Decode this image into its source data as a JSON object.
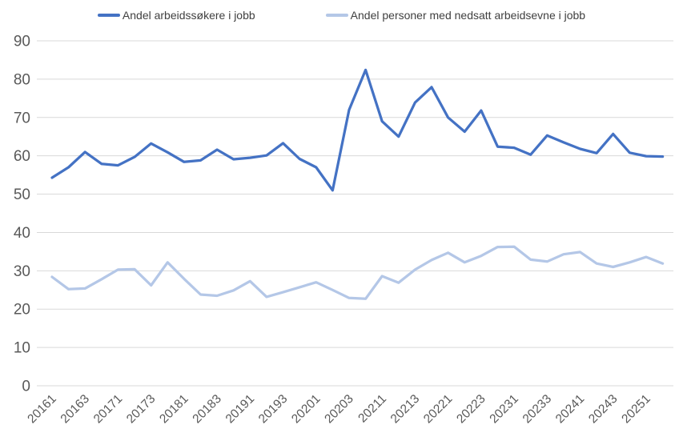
{
  "chart": {
    "background": "#ffffff",
    "grid_color": "#d9d9d9",
    "tick_label_color": "#595959",
    "legend_text_color": "#404040"
  },
  "legend": {
    "items": [
      {
        "label": "Andel arbeidssøkere i jobb",
        "color": "#4472C4"
      },
      {
        "label": "Andel personer med nedsatt arbeidsevne i jobb",
        "color": "#B4C7E7"
      }
    ]
  },
  "chart_data": {
    "type": "line",
    "title": "",
    "xlabel": "",
    "ylabel": "",
    "categories": [
      "20161",
      "20162",
      "20163",
      "20164",
      "20171",
      "20172",
      "20173",
      "20174",
      "20181",
      "20182",
      "20183",
      "20184",
      "20191",
      "20192",
      "20193",
      "20194",
      "20201",
      "20202",
      "20203",
      "20204",
      "20211",
      "20212",
      "20213",
      "20214",
      "20221",
      "20222",
      "20223",
      "20224",
      "20231",
      "20232",
      "20233",
      "20234",
      "20241",
      "20242",
      "20243",
      "20244",
      "20251",
      "20252"
    ],
    "x_tick_labels_shown": [
      "20161",
      "20163",
      "20171",
      "20173",
      "20181",
      "20183",
      "20191",
      "20193",
      "20201",
      "20203",
      "20211",
      "20213",
      "20221",
      "20223",
      "20231",
      "20233",
      "20241",
      "20243",
      "20251"
    ],
    "x_tick_every": 2,
    "series": [
      {
        "name": "Andel arbeidssøkere i jobb",
        "color": "#4472C4",
        "values": [
          54.3,
          57.0,
          61.0,
          57.9,
          57.5,
          59.7,
          63.2,
          60.9,
          58.4,
          58.8,
          61.6,
          59.1,
          59.5,
          60.1,
          63.3,
          59.2,
          57.0,
          51.0,
          72.0,
          82.4,
          69.0,
          65.0,
          73.9,
          77.9,
          70.0,
          66.3,
          71.8,
          62.4,
          62.1,
          60.3,
          65.3,
          63.5,
          61.8,
          60.7,
          65.7,
          60.8,
          59.9,
          59.8
        ]
      },
      {
        "name": "Andel personer med nedsatt arbeidsevne i jobb",
        "color": "#B4C7E7",
        "values": [
          28.4,
          25.2,
          25.4,
          27.8,
          30.3,
          30.4,
          26.2,
          32.2,
          27.9,
          23.8,
          23.5,
          24.9,
          27.3,
          23.2,
          24.4,
          25.7,
          27.0,
          25.0,
          22.9,
          22.7,
          28.6,
          26.9,
          30.3,
          32.8,
          34.7,
          32.2,
          33.9,
          36.2,
          36.3,
          32.9,
          32.4,
          34.3,
          34.9,
          31.9,
          31.0,
          32.2,
          33.6,
          31.9
        ]
      }
    ],
    "ylim": [
      0,
      90
    ],
    "yticks": [
      0,
      10,
      20,
      30,
      40,
      50,
      60,
      70,
      80,
      90
    ],
    "grid": true,
    "legend_position": "top"
  }
}
